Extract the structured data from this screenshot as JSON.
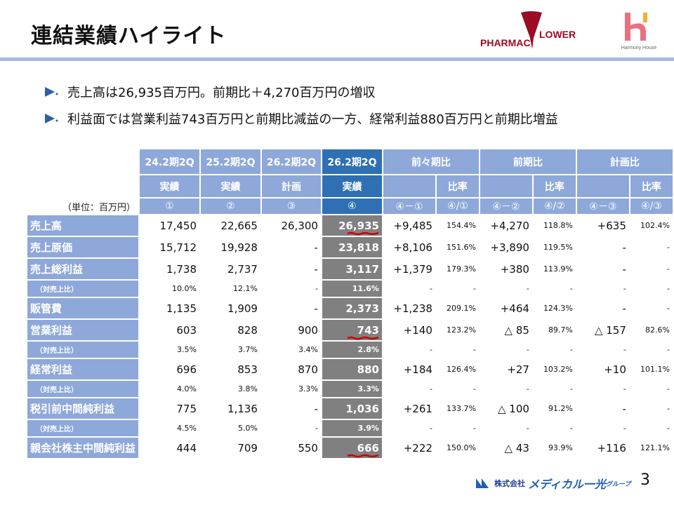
{
  "title": "連結業績ハイライト",
  "logos": {
    "pharmacflower": "PHARMAC FLOWER",
    "harmony": "Harmony House",
    "footer": "株式会社メディカル一光グループ"
  },
  "bullets": [
    "売上高は26,935百万円。前期比＋4,270百万円の増収",
    "利益面では営業利益743百万円と前期比減益の一方、経常利益880百万円と前期比増益"
  ],
  "table": {
    "unit": "（単位：百万円）",
    "header1": [
      "24.2期2Q",
      "25.2期2Q",
      "26.2期2Q",
      "26.2期2Q",
      "前々期比",
      "前期比",
      "計画比"
    ],
    "header2": [
      "実績",
      "実績",
      "計画",
      "実績",
      "比率",
      "比率",
      "比率"
    ],
    "header3": [
      "①",
      "②",
      "③",
      "④",
      "④－①",
      "④/①",
      "④－②",
      "④/②",
      "④－③",
      "④/③"
    ],
    "rows": [
      {
        "type": "main",
        "label": "売上高",
        "cells": [
          "17,450",
          "22,665",
          "26,300",
          "26,935",
          "+9,485",
          "154.4%",
          "+4,270",
          "118.8%",
          "+635",
          "102.4%"
        ]
      },
      {
        "type": "main",
        "label": "売上原価",
        "cells": [
          "15,712",
          "19,928",
          "-",
          "23,818",
          "+8,106",
          "151.6%",
          "+3,890",
          "119.5%",
          "-",
          "-"
        ]
      },
      {
        "type": "main",
        "label": "売上総利益",
        "cells": [
          "1,738",
          "2,737",
          "-",
          "3,117",
          "+1,379",
          "179.3%",
          "+380",
          "113.9%",
          "-",
          "-"
        ]
      },
      {
        "type": "sub",
        "label": "（対売上比）",
        "cells": [
          "10.0%",
          "12.1%",
          "-",
          "11.6%",
          "-",
          "-",
          "-",
          "-",
          "-",
          "-"
        ]
      },
      {
        "type": "main",
        "label": "販管費",
        "cells": [
          "1,135",
          "1,909",
          "-",
          "2,373",
          "+1,238",
          "209.1%",
          "+464",
          "124.3%",
          "-",
          "-"
        ]
      },
      {
        "type": "main",
        "label": "営業利益",
        "cells": [
          "603",
          "828",
          "900",
          "743",
          "+140",
          "123.2%",
          "△ 85",
          "89.7%",
          "△ 157",
          "82.6%"
        ]
      },
      {
        "type": "sub",
        "label": "（対売上比）",
        "cells": [
          "3.5%",
          "3.7%",
          "3.4%",
          "2.8%",
          "-",
          "-",
          "-",
          "-",
          "-",
          "-"
        ]
      },
      {
        "type": "main",
        "label": "経常利益",
        "cells": [
          "696",
          "853",
          "870",
          "880",
          "+184",
          "126.4%",
          "+27",
          "103.2%",
          "+10",
          "101.1%"
        ]
      },
      {
        "type": "sub",
        "label": "（対売上比）",
        "cells": [
          "4.0%",
          "3.8%",
          "3.3%",
          "3.3%",
          "-",
          "-",
          "-",
          "-",
          "-",
          "-"
        ]
      },
      {
        "type": "main",
        "label": "税引前中間純利益",
        "cells": [
          "775",
          "1,136",
          "-",
          "1,036",
          "+261",
          "133.7%",
          "△ 100",
          "91.2%",
          "-",
          "-"
        ]
      },
      {
        "type": "sub",
        "label": "（対売上比）",
        "cells": [
          "4.5%",
          "5.0%",
          "-",
          "3.9%",
          "-",
          "-",
          "-",
          "-",
          "-",
          "-"
        ]
      },
      {
        "type": "main",
        "label": "親会社株主中間純利益",
        "cells": [
          "444",
          "709",
          "550",
          "666",
          "+222",
          "150.0%",
          "△ 43",
          "93.9%",
          "+116",
          "121.1%"
        ]
      }
    ],
    "underlined_rows": [
      0,
      5,
      11
    ]
  },
  "page_number": "3",
  "colors": {
    "header": "#8ea8da",
    "highlight_header": "#2e70b3",
    "highlight_column": "#808080",
    "underline": "#cc0000"
  }
}
